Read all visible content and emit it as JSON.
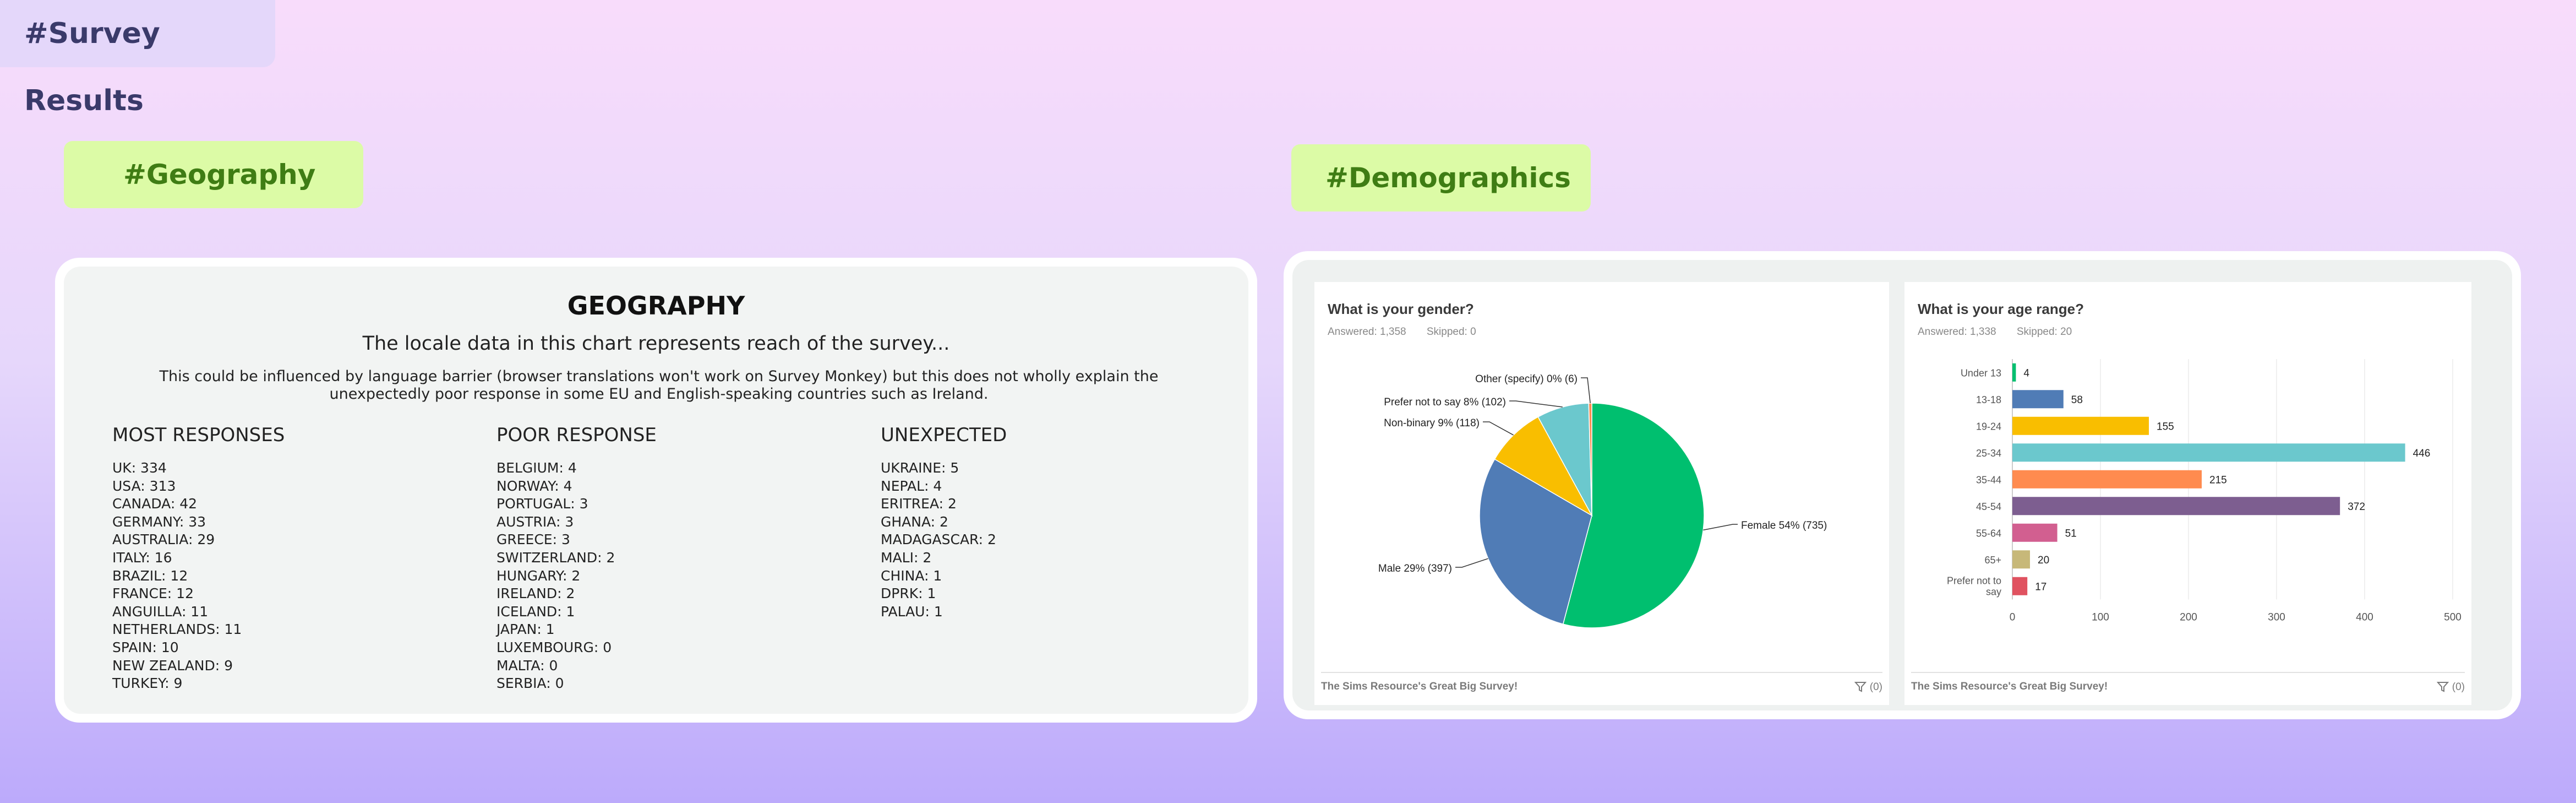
{
  "header": {
    "title": "#Survey Results"
  },
  "geography": {
    "tag": "#Geography",
    "heading": "GEOGRAPHY",
    "subtitle": "The locale data in this chart represents reach of the survey...",
    "note": "This could be influenced by language barrier (browser translations won't work on Survey Monkey) but this does not wholly explain the unexpectedly poor response in some EU and English-speaking countries such as Ireland.",
    "columns": [
      {
        "title": "MOST RESPONSES",
        "items": [
          "UK: 334",
          "USA: 313",
          "CANADA: 42",
          "GERMANY: 33",
          "AUSTRALIA: 29",
          "ITALY: 16",
          "BRAZIL: 12",
          "FRANCE: 12",
          "ANGUILLA: 11",
          "NETHERLANDS: 11",
          "SPAIN: 10",
          "NEW ZEALAND: 9",
          "TURKEY: 9"
        ]
      },
      {
        "title": "POOR RESPONSE",
        "items": [
          "BELGIUM: 4",
          "NORWAY: 4",
          "PORTUGAL: 3",
          "AUSTRIA: 3",
          "GREECE: 3",
          "SWITZERLAND: 2",
          "HUNGARY: 2",
          "IRELAND: 2",
          "ICELAND: 1",
          "JAPAN: 1",
          "LUXEMBOURG: 0",
          "MALTA: 0",
          "SERBIA: 0"
        ]
      },
      {
        "title": "UNEXPECTED",
        "items": [
          "UKRAINE: 5",
          "NEPAL: 4",
          "ERITREA: 2",
          "GHANA: 2",
          "MADAGASCAR: 2",
          "MALI: 2",
          "CHINA: 1",
          "DPRK: 1",
          "PALAU: 1"
        ]
      }
    ]
  },
  "demographics": {
    "tag": "#Demographics",
    "gender": {
      "question": "What is your gender?",
      "answered": "Answered: 1,358",
      "skipped": "Skipped: 0",
      "footer": "The Sims Resource's Great Big Survey!",
      "filter": "(0)"
    },
    "age": {
      "question": "What is your age range?",
      "answered": "Answered: 1,338",
      "skipped": "Skipped: 20",
      "footer": "The Sims Resource's Great Big Survey!",
      "filter": "(0)"
    }
  },
  "chart_data": [
    {
      "type": "pie",
      "title": "What is your gender?",
      "slices": [
        {
          "label": "Female 54% (735)",
          "value": 735,
          "percent": 54,
          "color": "#00bf6f"
        },
        {
          "label": "Male 29% (397)",
          "value": 397,
          "percent": 29,
          "color": "#507cb6"
        },
        {
          "label": "Non-binary 9% (118)",
          "value": 118,
          "percent": 9,
          "color": "#f9be00"
        },
        {
          "label": "Prefer not to say 8% (102)",
          "value": 102,
          "percent": 8,
          "color": "#6bc8cd"
        },
        {
          "label": "Other (specify) 0% (6)",
          "value": 6,
          "percent": 0,
          "color": "#ff8b4f"
        }
      ]
    },
    {
      "type": "bar",
      "orientation": "horizontal",
      "title": "What is your age range?",
      "categories": [
        "Under 13",
        "13-18",
        "19-24",
        "25-34",
        "35-44",
        "45-54",
        "55-64",
        "65+",
        "Prefer not to say"
      ],
      "values": [
        4,
        58,
        155,
        446,
        215,
        372,
        51,
        20,
        17
      ],
      "colors": [
        "#00bf6f",
        "#507cb6",
        "#f9be00",
        "#6bc8cd",
        "#ff8b4f",
        "#7d5e90",
        "#d25f90",
        "#c7b879",
        "#e05260"
      ],
      "xticks": [
        "0",
        "100",
        "200",
        "300",
        "400",
        "500"
      ],
      "xlim": [
        0,
        500
      ],
      "grid": true
    }
  ]
}
